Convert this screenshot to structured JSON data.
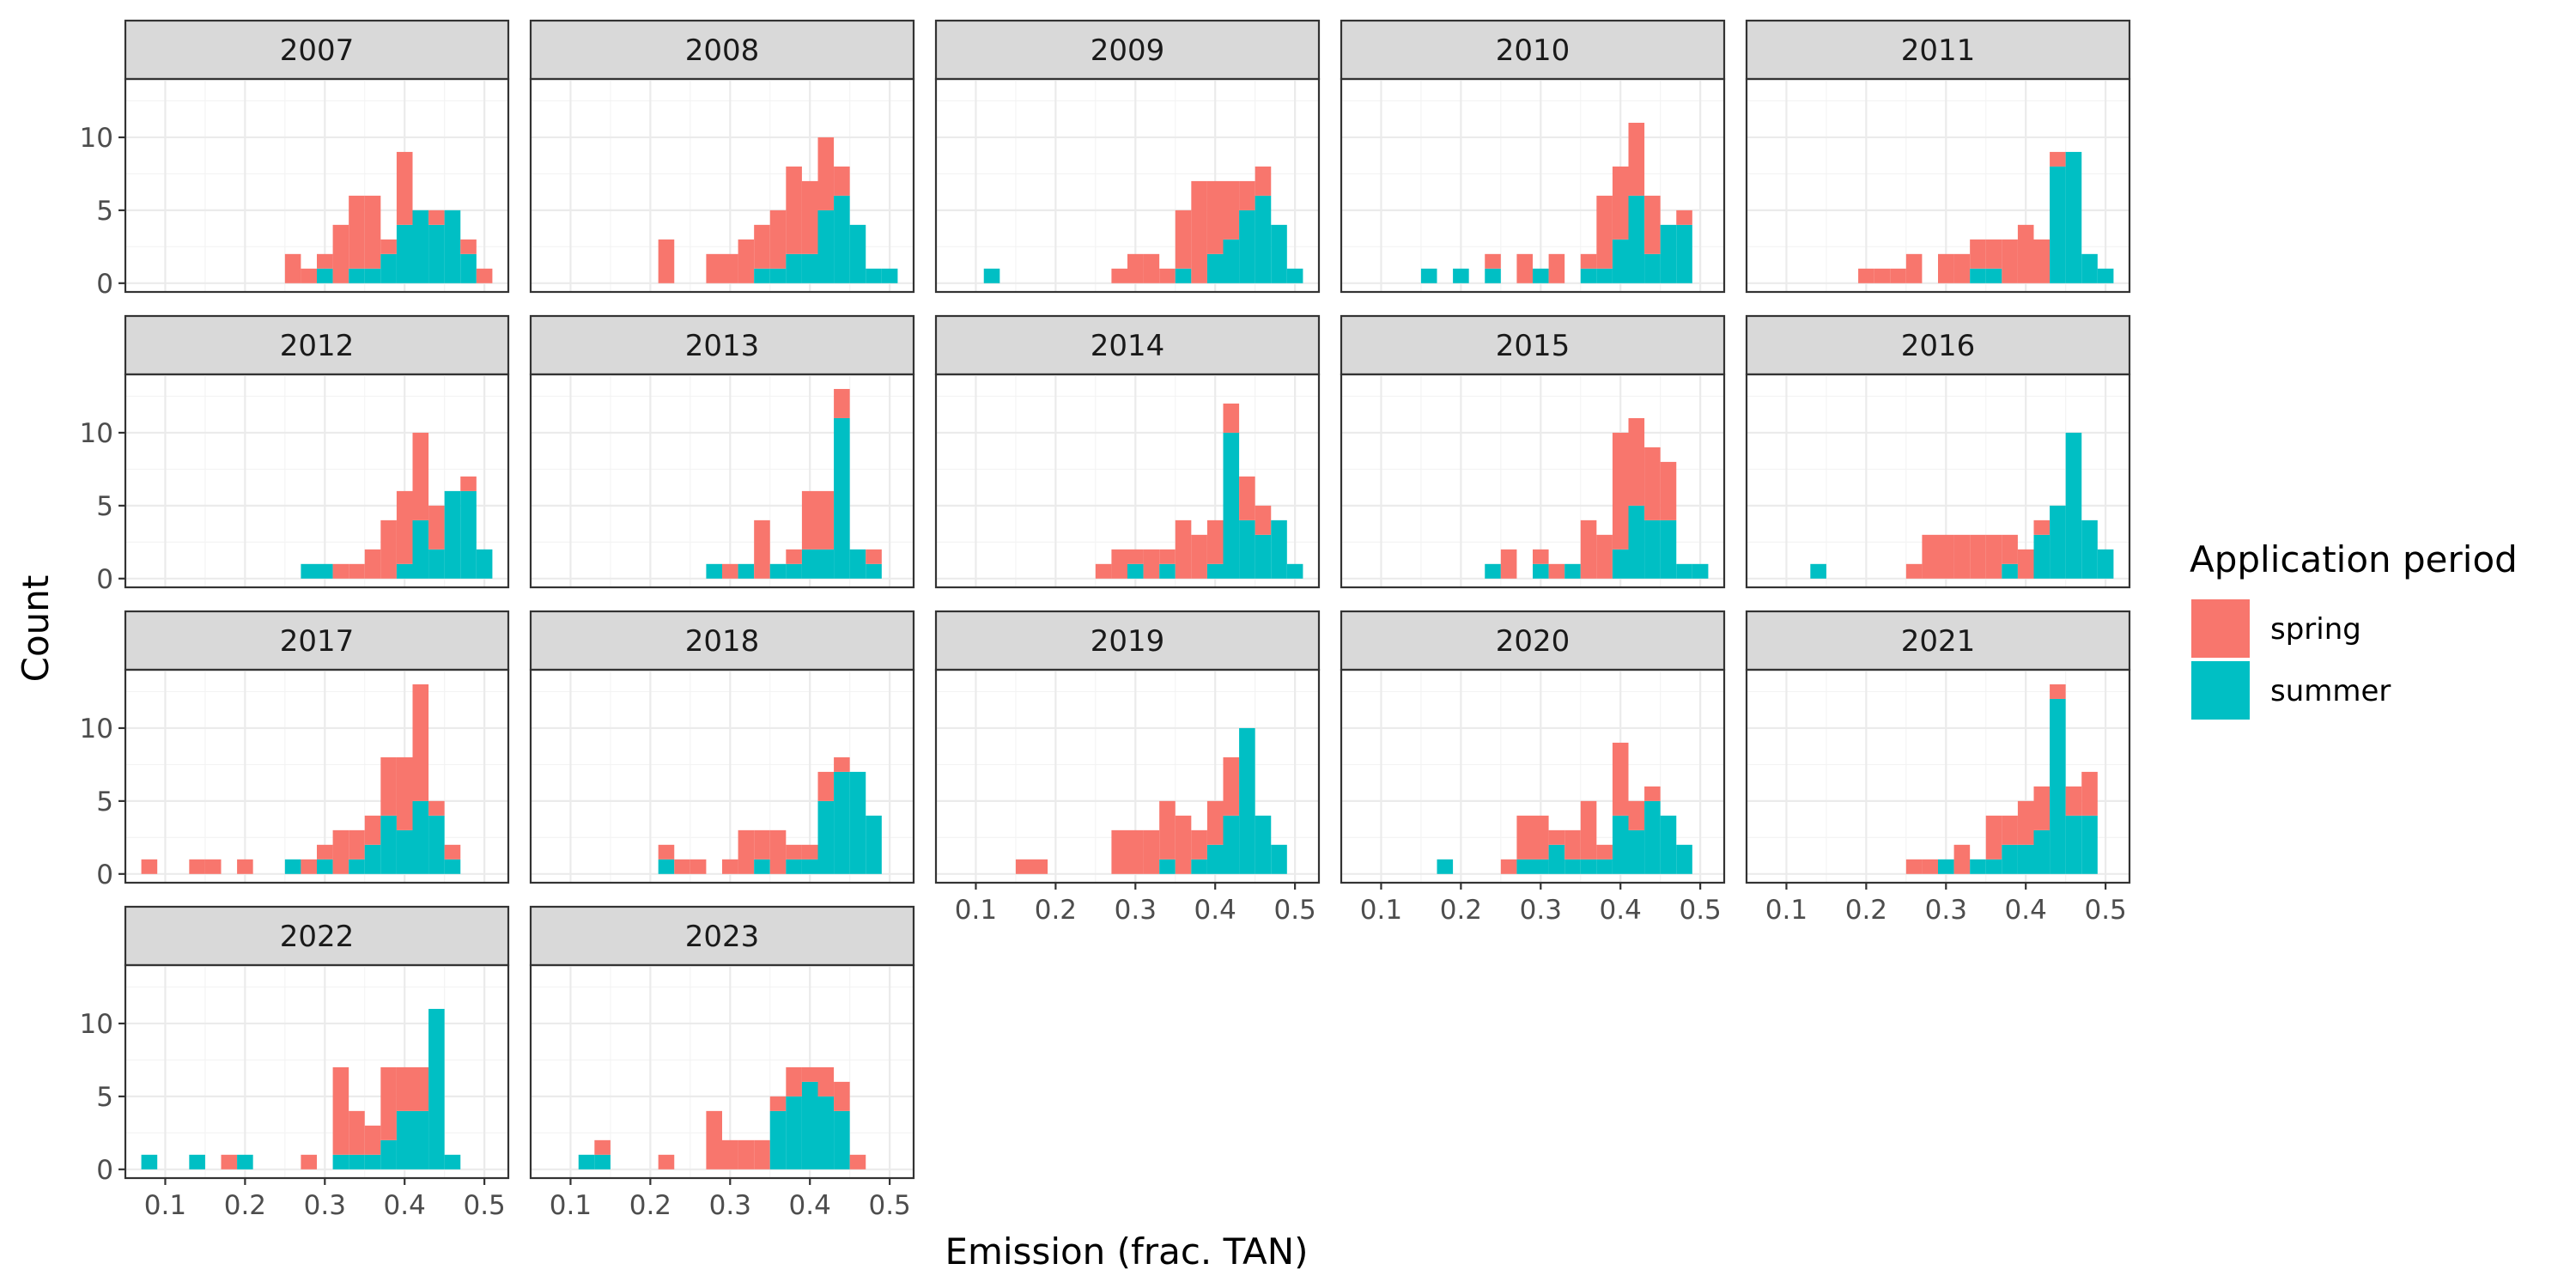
{
  "chart_data": {
    "type": "bar",
    "subtype": "faceted stacked histogram",
    "xlabel": "Emission (frac. TAN)",
    "ylabel": "Count",
    "xlim": [
      0.05,
      0.53
    ],
    "ylim": [
      -0.6,
      14
    ],
    "x_ticks": [
      "0.1",
      "0.2",
      "0.3",
      "0.4",
      "0.5"
    ],
    "y_ticks": [
      "0",
      "5",
      "10"
    ],
    "bin_width": 0.02,
    "legend": {
      "title": "Application period",
      "position": "right",
      "entries": [
        {
          "name": "spring",
          "color": "#F8766D"
        },
        {
          "name": "summer",
          "color": "#00BFC4"
        }
      ]
    },
    "facets": [
      {
        "title": "2007",
        "bins": [
          0.26,
          0.28,
          0.3,
          0.32,
          0.34,
          0.36,
          0.38,
          0.4,
          0.42,
          0.44,
          0.46,
          0.48,
          0.5
        ],
        "spring": [
          2,
          1,
          1,
          4,
          5,
          5,
          1,
          5,
          0,
          1,
          0,
          1,
          1
        ],
        "summer": [
          0,
          0,
          1,
          0,
          1,
          1,
          2,
          4,
          5,
          4,
          5,
          2,
          0
        ]
      },
      {
        "title": "2008",
        "bins": [
          0.22,
          0.28,
          0.3,
          0.32,
          0.34,
          0.36,
          0.38,
          0.4,
          0.42,
          0.44,
          0.46,
          0.48,
          0.5
        ],
        "spring": [
          3,
          2,
          2,
          3,
          3,
          4,
          6,
          5,
          5,
          2,
          0,
          0,
          0
        ],
        "summer": [
          0,
          0,
          0,
          0,
          1,
          1,
          2,
          2,
          5,
          6,
          4,
          1,
          1
        ]
      },
      {
        "title": "2009",
        "bins": [
          0.12,
          0.28,
          0.3,
          0.32,
          0.34,
          0.36,
          0.38,
          0.4,
          0.42,
          0.44,
          0.46,
          0.48,
          0.5
        ],
        "spring": [
          0,
          1,
          2,
          2,
          1,
          4,
          7,
          5,
          4,
          2,
          2,
          0,
          0
        ],
        "summer": [
          1,
          0,
          0,
          0,
          0,
          1,
          0,
          2,
          3,
          5,
          6,
          4,
          1
        ]
      },
      {
        "title": "2010",
        "bins": [
          0.16,
          0.2,
          0.24,
          0.26,
          0.28,
          0.3,
          0.32,
          0.34,
          0.36,
          0.38,
          0.4,
          0.42,
          0.44,
          0.46,
          0.48
        ],
        "spring": [
          0,
          0,
          1,
          0,
          2,
          0,
          2,
          0,
          1,
          5,
          5,
          5,
          4,
          0,
          1
        ],
        "summer": [
          1,
          1,
          1,
          0,
          0,
          1,
          0,
          0,
          1,
          1,
          3,
          6,
          2,
          4,
          4
        ]
      },
      {
        "title": "2011",
        "bins": [
          0.2,
          0.22,
          0.24,
          0.26,
          0.28,
          0.3,
          0.32,
          0.34,
          0.36,
          0.38,
          0.4,
          0.42,
          0.44,
          0.46,
          0.48,
          0.5
        ],
        "spring": [
          1,
          1,
          1,
          2,
          0,
          2,
          2,
          2,
          2,
          3,
          4,
          3,
          1,
          0,
          0,
          0
        ],
        "summer": [
          0,
          0,
          0,
          0,
          0,
          0,
          0,
          1,
          1,
          0,
          0,
          0,
          8,
          9,
          2,
          1
        ]
      },
      {
        "title": "2012",
        "bins": [
          0.28,
          0.3,
          0.32,
          0.34,
          0.36,
          0.38,
          0.4,
          0.42,
          0.44,
          0.46,
          0.48,
          0.5
        ],
        "spring": [
          0,
          0,
          1,
          1,
          2,
          4,
          5,
          6,
          3,
          0,
          1,
          0
        ],
        "summer": [
          1,
          1,
          0,
          0,
          0,
          0,
          1,
          4,
          2,
          6,
          6,
          2
        ]
      },
      {
        "title": "2013",
        "bins": [
          0.28,
          0.3,
          0.32,
          0.34,
          0.36,
          0.38,
          0.4,
          0.42,
          0.44,
          0.46,
          0.48
        ],
        "spring": [
          0,
          1,
          0,
          4,
          0,
          1,
          4,
          4,
          2,
          0,
          1
        ],
        "summer": [
          1,
          0,
          1,
          0,
          1,
          1,
          2,
          2,
          11,
          2,
          1
        ]
      },
      {
        "title": "2014",
        "bins": [
          0.26,
          0.28,
          0.3,
          0.32,
          0.34,
          0.36,
          0.38,
          0.4,
          0.42,
          0.44,
          0.46,
          0.48,
          0.5
        ],
        "spring": [
          1,
          2,
          1,
          2,
          1,
          4,
          3,
          3,
          2,
          3,
          2,
          0,
          0
        ],
        "summer": [
          0,
          0,
          1,
          0,
          1,
          0,
          0,
          1,
          10,
          4,
          3,
          4,
          1
        ]
      },
      {
        "title": "2015",
        "bins": [
          0.24,
          0.26,
          0.28,
          0.3,
          0.32,
          0.34,
          0.36,
          0.38,
          0.4,
          0.42,
          0.44,
          0.46,
          0.48,
          0.5
        ],
        "spring": [
          0,
          2,
          0,
          1,
          1,
          0,
          4,
          3,
          8,
          6,
          5,
          4,
          0,
          0
        ],
        "summer": [
          1,
          0,
          0,
          1,
          0,
          1,
          0,
          0,
          2,
          5,
          4,
          4,
          1,
          1
        ]
      },
      {
        "title": "2016",
        "bins": [
          0.14,
          0.26,
          0.28,
          0.3,
          0.32,
          0.34,
          0.36,
          0.38,
          0.4,
          0.42,
          0.44,
          0.46,
          0.48,
          0.5
        ],
        "spring": [
          0,
          1,
          3,
          3,
          3,
          3,
          3,
          2,
          2,
          1,
          0,
          0,
          0,
          0
        ],
        "summer": [
          1,
          0,
          0,
          0,
          0,
          0,
          0,
          1,
          0,
          3,
          5,
          10,
          4,
          2
        ]
      },
      {
        "title": "2017",
        "bins": [
          0.08,
          0.14,
          0.16,
          0.2,
          0.26,
          0.28,
          0.3,
          0.32,
          0.34,
          0.36,
          0.38,
          0.4,
          0.42,
          0.44,
          0.46
        ],
        "spring": [
          1,
          1,
          1,
          1,
          0,
          1,
          1,
          3,
          2,
          2,
          4,
          5,
          8,
          1,
          1
        ],
        "summer": [
          0,
          0,
          0,
          0,
          1,
          0,
          1,
          0,
          1,
          2,
          4,
          3,
          5,
          4,
          1
        ]
      },
      {
        "title": "2018",
        "bins": [
          0.22,
          0.24,
          0.26,
          0.28,
          0.3,
          0.32,
          0.34,
          0.36,
          0.38,
          0.4,
          0.42,
          0.44,
          0.46,
          0.48
        ],
        "spring": [
          1,
          1,
          1,
          0,
          1,
          3,
          2,
          3,
          1,
          1,
          2,
          1,
          0,
          0
        ],
        "summer": [
          1,
          0,
          0,
          0,
          0,
          0,
          1,
          0,
          1,
          1,
          5,
          7,
          7,
          4
        ]
      },
      {
        "title": "2019",
        "bins": [
          0.16,
          0.18,
          0.28,
          0.3,
          0.32,
          0.34,
          0.36,
          0.38,
          0.4,
          0.42,
          0.44,
          0.46,
          0.48
        ],
        "spring": [
          1,
          1,
          3,
          3,
          3,
          4,
          4,
          2,
          3,
          4,
          0,
          0,
          0
        ],
        "summer": [
          0,
          0,
          0,
          0,
          0,
          1,
          0,
          1,
          2,
          4,
          10,
          4,
          2
        ]
      },
      {
        "title": "2020",
        "bins": [
          0.18,
          0.26,
          0.28,
          0.3,
          0.32,
          0.34,
          0.36,
          0.38,
          0.4,
          0.42,
          0.44,
          0.46,
          0.48
        ],
        "spring": [
          0,
          1,
          3,
          3,
          1,
          2,
          4,
          1,
          5,
          2,
          1,
          0,
          0
        ],
        "summer": [
          1,
          0,
          1,
          1,
          2,
          1,
          1,
          1,
          4,
          3,
          5,
          4,
          2
        ]
      },
      {
        "title": "2021",
        "bins": [
          0.26,
          0.28,
          0.3,
          0.32,
          0.34,
          0.36,
          0.38,
          0.4,
          0.42,
          0.44,
          0.46,
          0.48
        ],
        "spring": [
          1,
          1,
          0,
          2,
          0,
          3,
          2,
          3,
          3,
          1,
          2,
          3
        ],
        "summer": [
          0,
          0,
          1,
          0,
          1,
          1,
          2,
          2,
          3,
          12,
          4,
          4
        ]
      },
      {
        "title": "2022",
        "bins": [
          0.08,
          0.14,
          0.18,
          0.2,
          0.28,
          0.32,
          0.34,
          0.36,
          0.38,
          0.4,
          0.42,
          0.44,
          0.46
        ],
        "spring": [
          0,
          0,
          1,
          0,
          1,
          6,
          3,
          2,
          5,
          3,
          3,
          0,
          0
        ],
        "summer": [
          1,
          1,
          0,
          1,
          0,
          1,
          1,
          1,
          2,
          4,
          4,
          11,
          1
        ]
      },
      {
        "title": "2023",
        "bins": [
          0.12,
          0.14,
          0.22,
          0.28,
          0.3,
          0.32,
          0.34,
          0.36,
          0.38,
          0.4,
          0.42,
          0.44,
          0.46
        ],
        "spring": [
          0,
          1,
          1,
          4,
          2,
          2,
          2,
          1,
          2,
          1,
          2,
          2,
          1
        ],
        "summer": [
          1,
          1,
          0,
          0,
          0,
          0,
          0,
          4,
          5,
          6,
          5,
          4,
          0
        ]
      }
    ]
  }
}
